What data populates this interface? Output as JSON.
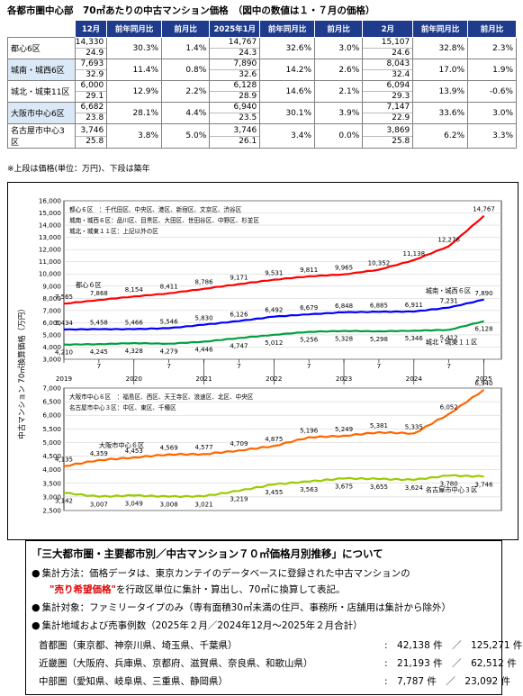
{
  "title": "各都市圏中心部　70㎡あたりの中古マンション価格　（図中の数値は１・７月の価格）",
  "table": {
    "headers": {
      "dec": "12月",
      "jan": "2025年1月",
      "feb": "2月",
      "yoy": "前年同月比",
      "mom": "前月比"
    },
    "rows": [
      {
        "name": "都心6区",
        "dec_price": "14,330",
        "dec_age": "24.9",
        "dec_yoy": "30.3%",
        "dec_mom": "1.4%",
        "jan_price": "14,767",
        "jan_age": "24.3",
        "jan_yoy": "32.6%",
        "jan_mom": "3.0%",
        "feb_price": "15,107",
        "feb_age": "24.6",
        "feb_yoy": "32.8%",
        "feb_mom": "2.3%"
      },
      {
        "name": "城南・城西6区",
        "dec_price": "7,693",
        "dec_age": "32.9",
        "dec_yoy": "11.4%",
        "dec_mom": "0.8%",
        "jan_price": "7,890",
        "jan_age": "32.6",
        "jan_yoy": "14.2%",
        "jan_mom": "2.6%",
        "feb_price": "8,043",
        "feb_age": "32.4",
        "feb_yoy": "17.0%",
        "feb_mom": "1.9%"
      },
      {
        "name": "城北・城東11区",
        "dec_price": "6,000",
        "dec_age": "29.1",
        "dec_yoy": "12.9%",
        "dec_mom": "2.2%",
        "jan_price": "6,128",
        "jan_age": "28.9",
        "jan_yoy": "14.6%",
        "jan_mom": "2.1%",
        "feb_price": "6,094",
        "feb_age": "29.3",
        "feb_yoy": "13.9%",
        "feb_mom": "-0.6%"
      },
      {
        "name": "大阪市中心6区",
        "dec_price": "6,682",
        "dec_age": "23.8",
        "dec_yoy": "28.1%",
        "dec_mom": "4.4%",
        "jan_price": "6,940",
        "jan_age": "23.5",
        "jan_yoy": "30.1%",
        "jan_mom": "3.9%",
        "feb_price": "7,147",
        "feb_age": "22.9",
        "feb_yoy": "33.6%",
        "feb_mom": "3.0%"
      },
      {
        "name": "名古屋市中心3区",
        "dec_price": "3,746",
        "dec_age": "25.8",
        "dec_yoy": "3.8%",
        "dec_mom": "5.0%",
        "jan_price": "3,746",
        "jan_age": "26.1",
        "jan_yoy": "3.4%",
        "jan_mom": "0.0%",
        "feb_price": "3,869",
        "feb_age": "25.8",
        "feb_yoy": "6.2%",
        "feb_mom": "3.3%"
      }
    ]
  },
  "note": "※上段は価格(単位：万円)、下段は築年",
  "chart_data": {
    "type": "line",
    "ylabel": "中古マンション 70㎡換算価格（万円）",
    "x_years": [
      "2019",
      "2020",
      "2021",
      "2022",
      "2023",
      "2024",
      "2025"
    ],
    "x_month_ticks": [
      "1",
      "7"
    ],
    "upper": {
      "ylim": [
        3000,
        16000
      ],
      "ticks": [
        "3,000",
        "4,000",
        "5,000",
        "6,000",
        "7,000",
        "8,000",
        "9,000",
        "10,000",
        "11,000",
        "12,000",
        "13,000",
        "14,000",
        "15,000",
        "16,000"
      ],
      "legend": [
        "都心６区　：千代田区、中央区、港区、新宿区、文京区、渋谷区",
        "城南・城西６区：品川区、目黒区、大田区、世田谷区、中野区、杉並区",
        "城北・城東１１区：上記以外の区"
      ],
      "series": [
        {
          "name": "都心６区",
          "color": "#ff0000",
          "labels": [
            "7,565",
            "7,868",
            "8,154",
            "8,411",
            "8,786",
            "9,171",
            "9,531",
            "9,811",
            "9,965",
            "10,352",
            "11,138",
            "12,276",
            "14,767"
          ],
          "values": [
            7565,
            7868,
            8154,
            8411,
            8786,
            9171,
            9531,
            9811,
            9965,
            10352,
            11138,
            12276,
            14767
          ]
        },
        {
          "name": "城南・城西６区",
          "color": "#0000ff",
          "labels": [
            "5,434",
            "5,458",
            "5,466",
            "5,546",
            "5,830",
            "6,126",
            "6,492",
            "6,679",
            "6,848",
            "6,885",
            "6,911",
            "7,231",
            "7,890"
          ],
          "values": [
            5434,
            5458,
            5466,
            5546,
            5830,
            6126,
            6492,
            6679,
            6848,
            6885,
            6911,
            7231,
            7890
          ]
        },
        {
          "name": "城北・城東１１区",
          "color": "#00a040",
          "labels": [
            "4,210",
            "4,245",
            "4,328",
            "4,279",
            "4,446",
            "4,747",
            "5,012",
            "5,256",
            "5,328",
            "5,298",
            "5,346",
            "5,412",
            "6,128"
          ],
          "values": [
            4210,
            4245,
            4328,
            4279,
            4446,
            4747,
            5012,
            5256,
            5328,
            5298,
            5346,
            5412,
            6128
          ]
        }
      ]
    },
    "lower": {
      "ylim": [
        2500,
        7000
      ],
      "ticks": [
        "2,500",
        "3,000",
        "3,500",
        "4,000",
        "4,500",
        "5,000",
        "5,500",
        "6,000",
        "6,500",
        "7,000"
      ],
      "legend": [
        "大阪市中心６区　：福島区、西区、天王寺区、浪速区、北区、中央区",
        "名古屋市中心３区：中区、東区、千種区"
      ],
      "series": [
        {
          "name": "大阪市中心６区",
          "color": "#ff6600",
          "labels": [
            "4,135",
            "4,359",
            "4,453",
            "4,569",
            "4,577",
            "4,709",
            "4,875",
            "5,196",
            "5,249",
            "5,381",
            "5,335",
            "6,052",
            "6,940"
          ],
          "values": [
            4135,
            4359,
            4453,
            4569,
            4577,
            4709,
            4875,
            5196,
            5249,
            5381,
            5335,
            6052,
            6940
          ]
        },
        {
          "name": "名古屋市中心３区",
          "color": "#99cc00",
          "labels": [
            "3,142",
            "3,007",
            "3,049",
            "3,008",
            "3,021",
            "3,219",
            "3,455",
            "3,563",
            "3,675",
            "3,655",
            "3,624",
            "3,780",
            "3,746"
          ],
          "values": [
            3142,
            3007,
            3049,
            3008,
            3021,
            3219,
            3455,
            3563,
            3675,
            3655,
            3624,
            3780,
            3746
          ]
        }
      ]
    }
  },
  "about": {
    "title": "「三大都市圏・主要都市別／中古マンション７０㎡価格月別推移」について",
    "method_a": "集計方法：価格データは、東京カンテイのデータベースに登録された中古マンションの",
    "method_red": "\"売り希望価格\"",
    "method_b": "を行政区単位に集計・算出し、70㎡に換算して表記。",
    "target": "集計対象：ファミリータイプのみ（専有面積30㎡未満の住戸、事務所・店舗用は集計から除外）",
    "area": "集計地域および売事例数（2025年２月／2024年12月～2025年２月合計）",
    "regions": [
      {
        "name": "首都圏（東京都、神奈川県、埼玉県、千葉県）",
        "count": ":　42,138 件　／　125,271 件"
      },
      {
        "name": "近畿圏（大阪府、兵庫県、京都府、滋賀県、奈良県、和歌山県）",
        "count": ":　21,193 件　／　62,512 件"
      },
      {
        "name": "中部圏（愛知県、岐阜県、三重県、静岡県）",
        "count": ":　7,787 件　／　23,092 件"
      }
    ]
  }
}
